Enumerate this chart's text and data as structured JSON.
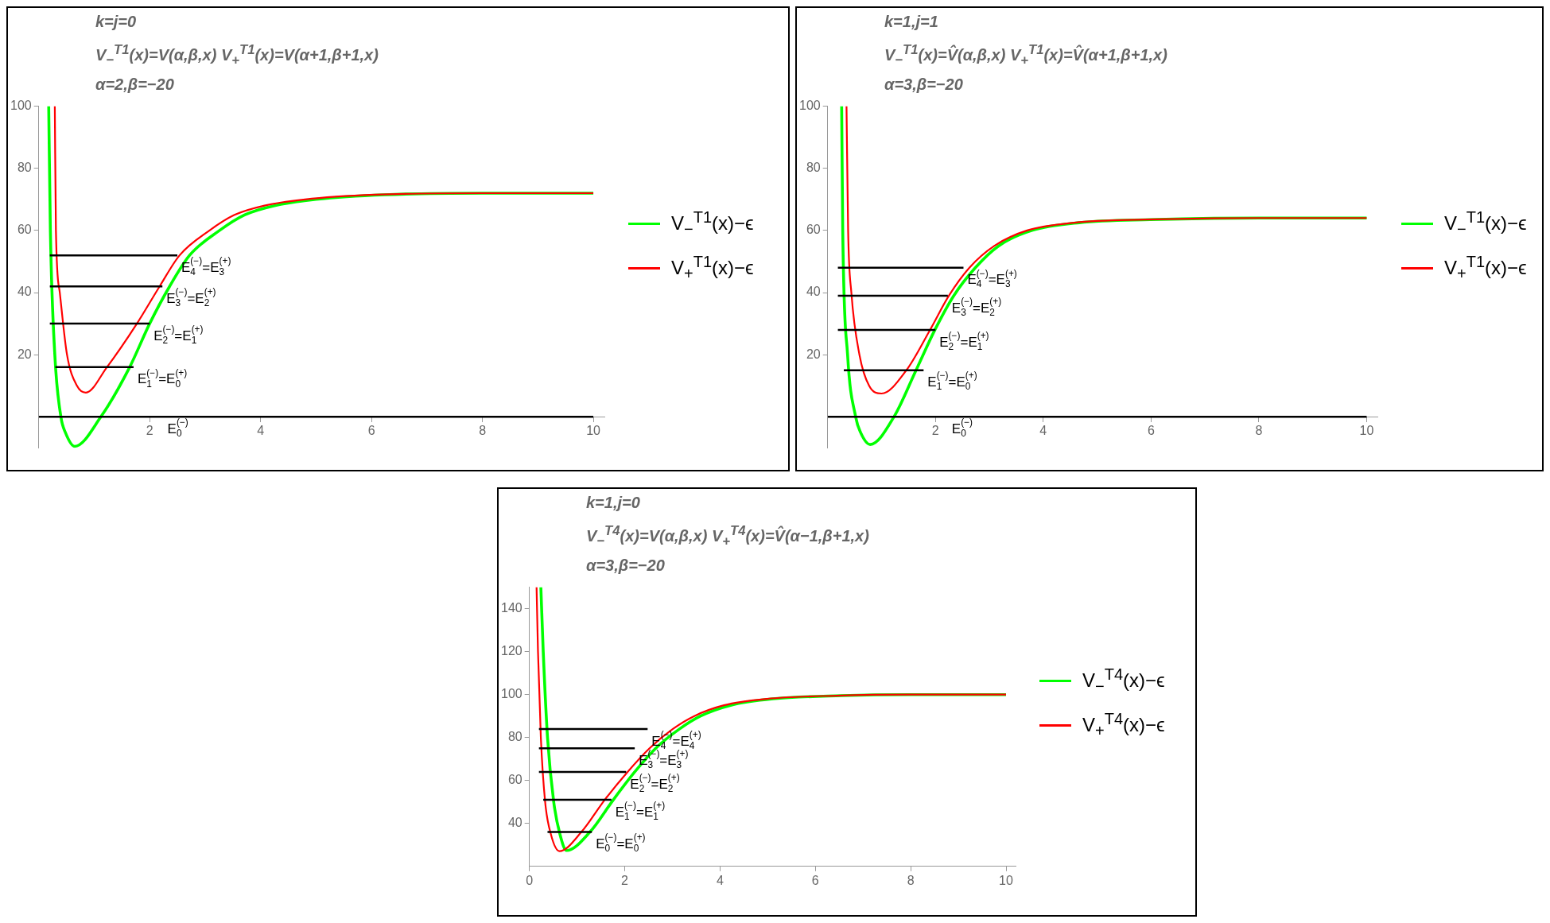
{
  "chart_data": [
    {
      "type": "line",
      "title": "k=j=0",
      "subtitle": "V$_{−}$$^{T1}$(x)=V(α,β,x)   V$_{+}$$^{T1}$(x)=V(α+1,β+1,x)",
      "xlim": [
        0,
        10.2
      ],
      "xticks": [
        2,
        4,
        6,
        8,
        10
      ],
      "ylim": [
        -10,
        100
      ],
      "yticks": [
        20,
        40,
        60,
        80,
        100
      ],
      "legend": "right",
      "series": [
        {
          "name": "V$_{−}$$^{T1}$(x)−ϵ",
          "color": "#00ff00",
          "x": [
            0.18,
            0.21,
            0.29,
            0.4,
            0.48,
            0.65,
            1.12,
            1.64,
            2.0,
            2.36,
            2.72,
            3.26,
            3.71,
            4.25,
            5.0,
            6.24,
            8,
            10
          ],
          "values": [
            100,
            60,
            20,
            0,
            -5,
            -9.5,
            0,
            16,
            30,
            42,
            52,
            60,
            65,
            68,
            70,
            71.5,
            72,
            72
          ]
        },
        {
          "name": "V$_{+}$$^{T1}$(x)−ϵ",
          "color": "#ff0000",
          "x": [
            0.29,
            0.31,
            0.38,
            0.51,
            0.69,
            0.85,
            1.23,
            1.77,
            2.18,
            2.54,
            3.08,
            3.53,
            4.07,
            4.8,
            6.06,
            8,
            10
          ],
          "values": [
            100,
            60,
            40,
            20,
            10,
            7.8,
            16,
            30,
            42,
            52,
            60,
            65,
            68,
            70,
            71.5,
            72,
            72
          ]
        },
        {
          "color": "#000000",
          "x": [
            0.2,
            2.5
          ],
          "values": [
            52,
            52
          ]
        },
        {
          "color": "#000000",
          "x": [
            0.2,
            2.23
          ],
          "values": [
            42,
            42
          ]
        },
        {
          "color": "#000000",
          "x": [
            0.2,
            2.0
          ],
          "values": [
            30,
            30
          ]
        },
        {
          "color": "#000000",
          "x": [
            0.3,
            1.71
          ],
          "values": [
            16,
            16
          ]
        },
        {
          "color": "#000000",
          "x": [
            0,
            10
          ],
          "values": [
            0,
            0
          ]
        }
      ],
      "annotations": [
        "α=2,β=−20",
        {
          "text": "E$_{4}$$^{(−)}$=E$_{3}$$^{(+)}$",
          "x": 2.5,
          "y": 52
        },
        {
          "text": "E$_{3}$$^{(−)}$=E$_{2}$$^{(+)}$",
          "x": 2.23,
          "y": 42
        },
        {
          "text": "E$_{2}$$^{(−)}$=E$_{1}$$^{(+)}$",
          "x": 2.0,
          "y": 30
        },
        {
          "text": "E$_{1}$$^{(−)}$=E$_{0}$$^{(+)}$",
          "x": 1.71,
          "y": 16
        },
        {
          "text": "E$_{0}$$^{(−)}$",
          "x": 2.25,
          "y": 0
        }
      ]
    },
    {
      "type": "line",
      "title": "k=1,j=1",
      "subtitle": "V$_{−}$$^{T1}$(x)=V̂(α,β,x)   V$_{+}$$^{T1}$(x)=V̂(α+1,β+1,x)",
      "xlim": [
        0,
        10.2
      ],
      "xticks": [
        2,
        4,
        6,
        8,
        10
      ],
      "ylim": [
        -10,
        100
      ],
      "yticks": [
        20,
        40,
        60,
        80,
        100
      ],
      "legend": "right",
      "series": [
        {
          "name": "V$_{−}$$^{T1}$(x)−ϵ",
          "color": "#00ff00",
          "x": [
            0.26,
            0.28,
            0.37,
            0.52,
            0.61,
            0.79,
            1.23,
            1.64,
            1.99,
            2.34,
            2.74,
            3.17,
            3.79,
            4.67,
            5.98,
            8,
            10
          ],
          "values": [
            100,
            60,
            20,
            0,
            -5,
            -8.9,
            0,
            15,
            28,
            39,
            48,
            55,
            60,
            62.5,
            63.5,
            64,
            64
          ]
        },
        {
          "name": "V$_{+}$$^{T1}$(x)−ϵ",
          "color": "#ff0000",
          "x": [
            0.35,
            0.38,
            0.44,
            0.59,
            0.77,
            1.0,
            1.46,
            1.9,
            2.25,
            2.63,
            3.09,
            3.7,
            4.58,
            5.89,
            8,
            10
          ],
          "values": [
            100,
            60,
            40,
            20,
            10,
            7.5,
            15,
            28,
            39,
            48,
            55,
            60,
            62.5,
            63.5,
            64,
            64
          ]
        },
        {
          "color": "#000000",
          "x": [
            0.19,
            2.52
          ],
          "values": [
            48,
            48
          ]
        },
        {
          "color": "#000000",
          "x": [
            0.19,
            2.23
          ],
          "values": [
            39,
            39
          ]
        },
        {
          "color": "#000000",
          "x": [
            0.19,
            2.0
          ],
          "values": [
            28,
            28
          ]
        },
        {
          "color": "#000000",
          "x": [
            0.3,
            1.78
          ],
          "values": [
            15,
            15
          ]
        },
        {
          "color": "#000000",
          "x": [
            0,
            10
          ],
          "values": [
            0,
            0
          ]
        }
      ],
      "annotations": [
        "α=3,β=−20",
        {
          "text": "E$_{4}$$^{(−)}$=E$_{3}$$^{(+)}$",
          "x": 2.52,
          "y": 48
        },
        {
          "text": "E$_{3}$$^{(−)}$=E$_{2}$$^{(+)}$",
          "x": 2.23,
          "y": 39
        },
        {
          "text": "E$_{2}$$^{(−)}$=E$_{1}$$^{(+)}$",
          "x": 2.0,
          "y": 28
        },
        {
          "text": "E$_{1}$$^{(−)}$=E$_{0}$$^{(+)}$",
          "x": 1.78,
          "y": 15
        },
        {
          "text": "E$_{0}$$^{(−)}$",
          "x": 2.23,
          "y": 0
        }
      ]
    },
    {
      "type": "line",
      "title": "k=1,j=0",
      "subtitle": "V$_{−}$$^{T4}$(x)=V(α,β,x)   V$_{+}$$^{T4}$(x)=V̂(α−1,β+1,x)",
      "xlim": [
        0,
        10.2
      ],
      "xticks": [
        0,
        2,
        4,
        6,
        8,
        10
      ],
      "ylim": [
        20,
        150
      ],
      "yticks": [
        40,
        60,
        80,
        100,
        120,
        140
      ],
      "legend": "right",
      "series": [
        {
          "name": "V$_{−}$$^{T4}$(x)−ϵ",
          "color": "#00ff00",
          "x": [
            0.24,
            0.29,
            0.38,
            0.51,
            0.64,
            0.78,
            1.27,
            1.76,
            2.21,
            2.65,
            3.15,
            3.59,
            4.22,
            5.11,
            6.54,
            8,
            10
          ],
          "values": [
            150,
            120,
            80,
            50,
            35,
            27.4,
            36,
            51,
            64,
            75,
            84,
            90,
            95,
            98,
            99.5,
            100,
            100
          ]
        },
        {
          "name": "V$_{+}$$^{T4}$(x)−ϵ",
          "color": "#ff0000",
          "x": [
            0.15,
            0.18,
            0.24,
            0.33,
            0.45,
            0.63,
            1.09,
            1.58,
            2.06,
            2.52,
            3.01,
            3.46,
            4.08,
            4.98,
            6.45,
            8,
            10
          ],
          "values": [
            150,
            120,
            80,
            50,
            35,
            27.1,
            36,
            51,
            64,
            75,
            84,
            90,
            95,
            98,
            99.5,
            100,
            100
          ]
        },
        {
          "color": "#000000",
          "x": [
            0.2,
            2.48
          ],
          "values": [
            84,
            84
          ]
        },
        {
          "color": "#000000",
          "x": [
            0.2,
            2.21
          ],
          "values": [
            75,
            75
          ]
        },
        {
          "color": "#000000",
          "x": [
            0.2,
            2.03
          ],
          "values": [
            64,
            64
          ]
        },
        {
          "color": "#000000",
          "x": [
            0.29,
            1.72
          ],
          "values": [
            51,
            51
          ]
        },
        {
          "color": "#000000",
          "x": [
            0.38,
            1.31
          ],
          "values": [
            36,
            36
          ]
        }
      ],
      "annotations": [
        "α=3,β=−20",
        {
          "text": "E$_{4}$$^{(−)}$=E$_{4}$$^{(+)}$",
          "x": 2.48,
          "y": 84
        },
        {
          "text": "E$_{3}$$^{(−)}$=E$_{3}$$^{(+)}$",
          "x": 2.21,
          "y": 75
        },
        {
          "text": "E$_{2}$$^{(−)}$=E$_{2}$$^{(+)}$",
          "x": 2.03,
          "y": 64
        },
        {
          "text": "E$_{1}$$^{(−)}$=E$_{1}$$^{(+)}$",
          "x": 1.72,
          "y": 51
        },
        {
          "text": "E$_{0}$$^{(−)}$=E$_{0}$$^{(+)}$",
          "x": 1.31,
          "y": 36
        }
      ]
    }
  ]
}
